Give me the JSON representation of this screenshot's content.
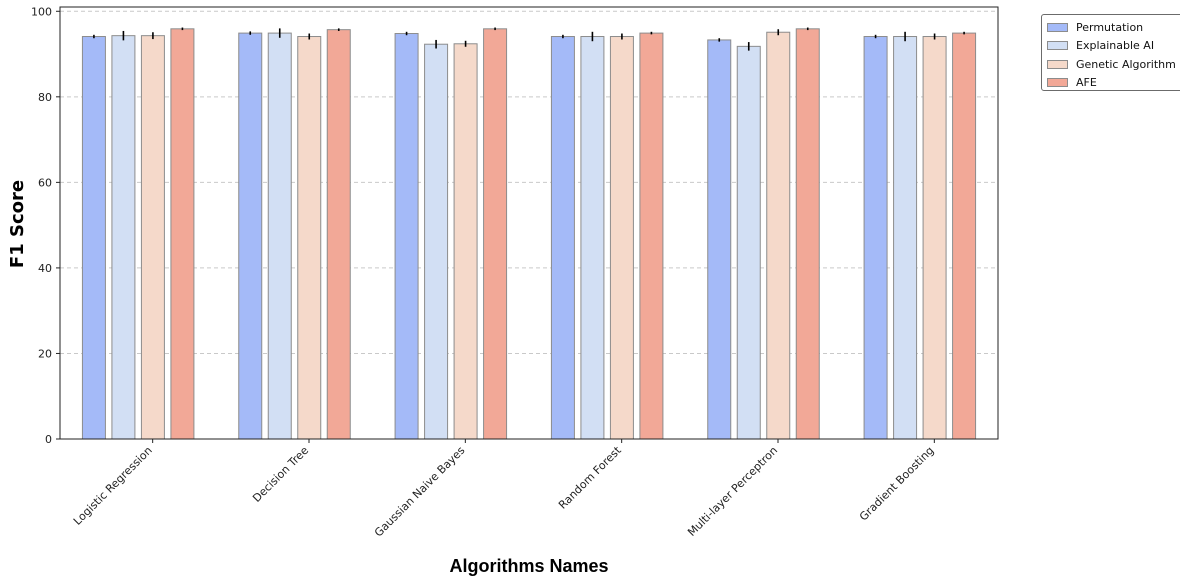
{
  "chart_data": {
    "type": "bar",
    "title": "",
    "xlabel": "Algorithms Names",
    "ylabel": "F1 Score",
    "ylim": [
      0,
      101
    ],
    "yticks": [
      0,
      20,
      40,
      60,
      80,
      100
    ],
    "grid": "horizontal dashed",
    "legend_position": "outside top-right",
    "categories": [
      "Logistic Regression",
      "Decision Tree",
      "Gaussian Naive Bayes",
      "Random Forest",
      "Multi-layer Perceptron",
      "Gradient Boosting"
    ],
    "series": [
      {
        "name": "Permutation",
        "color": "#a4baf8",
        "values": [
          94.1,
          94.9,
          94.8,
          94.1,
          93.3,
          94.1
        ],
        "errors": [
          0.4,
          0.4,
          0.4,
          0.4,
          0.4,
          0.4
        ]
      },
      {
        "name": "Explainable AI",
        "color": "#d2dff4",
        "values": [
          94.3,
          94.9,
          92.3,
          94.1,
          91.8,
          94.1
        ],
        "errors": [
          1.1,
          1.1,
          1.0,
          1.1,
          1.0,
          1.1
        ]
      },
      {
        "name": "Genetic Algorithm",
        "color": "#f5d9ca",
        "values": [
          94.3,
          94.1,
          92.4,
          94.1,
          95.1,
          94.1
        ],
        "errors": [
          0.8,
          0.7,
          0.7,
          0.7,
          0.7,
          0.7
        ]
      },
      {
        "name": "AFE",
        "color": "#f2a897",
        "values": [
          95.9,
          95.7,
          95.9,
          94.9,
          95.9,
          94.9
        ],
        "errors": [
          0.3,
          0.3,
          0.3,
          0.3,
          0.3,
          0.3
        ]
      }
    ]
  }
}
